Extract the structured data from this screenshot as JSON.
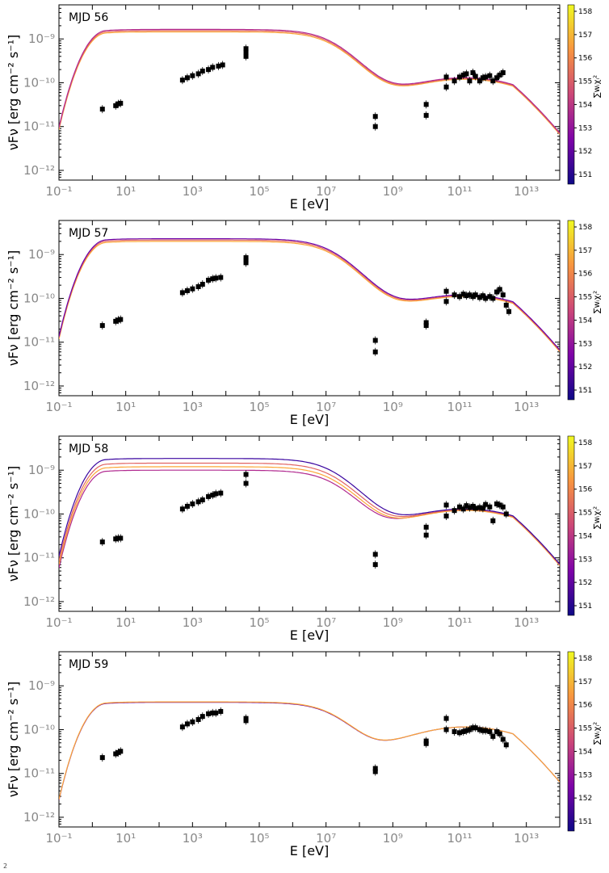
{
  "colorbar": {
    "label": "∑wᵢχᵢ²",
    "ticks": [
      "151",
      "152",
      "153",
      "154",
      "155",
      "156",
      "157",
      "158"
    ]
  },
  "footnote": "2",
  "chart_data": [
    {
      "type": "scatter",
      "title": "MJD 56",
      "xlabel": "E [eV]",
      "ylabel": "νFν [erg cm⁻² s⁻¹]",
      "x_scale": "log",
      "y_scale": "log",
      "xlim": [
        0.1,
        100000000000000.0
      ],
      "ylim": [
        6e-13,
        6e-09
      ],
      "xticks": [
        "10⁻¹",
        "10¹",
        "10³",
        "10⁵",
        "10⁷",
        "10⁹",
        "10¹¹",
        "10¹³"
      ],
      "yticks": [
        "10⁻¹²",
        "10⁻¹¹",
        "10⁻¹⁰",
        "10⁻⁹"
      ],
      "points": [
        [
          2.0,
          2.5e-11
        ],
        [
          5.0,
          3e-11
        ],
        [
          6.0,
          3.3e-11
        ],
        [
          7.0,
          3.4e-11
        ],
        [
          500,
          1.15e-10
        ],
        [
          700,
          1.3e-10
        ],
        [
          1000,
          1.45e-10
        ],
        [
          1500,
          1.6e-10
        ],
        [
          2000,
          1.85e-10
        ],
        [
          3000,
          2e-10
        ],
        [
          4000,
          2.25e-10
        ],
        [
          6000,
          2.4e-10
        ],
        [
          8000,
          2.55e-10
        ],
        [
          40000,
          5e-10
        ],
        [
          40000,
          4e-10
        ],
        [
          40000,
          6e-10
        ],
        [
          300000000.0,
          1.7e-11
        ],
        [
          300000000.0,
          1e-11
        ],
        [
          10000000000.0,
          3.2e-11
        ],
        [
          10000000000.0,
          1.8e-11
        ],
        [
          40000000000.0,
          1.35e-10
        ],
        [
          40000000000.0,
          8e-11
        ],
        [
          70000000000.0,
          1.1e-10
        ],
        [
          100000000000.0,
          1.35e-10
        ],
        [
          130000000000.0,
          1.5e-10
        ],
        [
          160000000000.0,
          1.6e-10
        ],
        [
          200000000000.0,
          1.1e-10
        ],
        [
          250000000000.0,
          1.7e-10
        ],
        [
          300000000000.0,
          1.4e-10
        ],
        [
          400000000000.0,
          1.1e-10
        ],
        [
          500000000000.0,
          1.3e-10
        ],
        [
          600000000000.0,
          1.35e-10
        ],
        [
          800000000000.0,
          1.45e-10
        ],
        [
          1000000000000.0,
          1.1e-10
        ],
        [
          1300000000000.0,
          1.3e-10
        ],
        [
          1600000000000.0,
          1.5e-10
        ],
        [
          2000000000000.0,
          1.7e-10
        ]
      ],
      "models": [
        {
          "color": "#fca636",
          "sync_peak": 1.45e-09,
          "dip": 6.5e-11,
          "ic_peak": 1.2e-10
        },
        {
          "color": "#e16462",
          "sync_peak": 1.55e-09,
          "dip": 6e-11,
          "ic_peak": 1.25e-10
        },
        {
          "color": "#b12a90",
          "sync_peak": 1.65e-09,
          "dip": 6.3e-11,
          "ic_peak": 1.3e-10
        }
      ]
    },
    {
      "type": "scatter",
      "title": "MJD 57",
      "xlabel": "E [eV]",
      "ylabel": "νFν [erg cm⁻² s⁻¹]",
      "x_scale": "log",
      "y_scale": "log",
      "xlim": [
        0.1,
        100000000000000.0
      ],
      "ylim": [
        6e-13,
        6e-09
      ],
      "xticks": [
        "10⁻¹",
        "10¹",
        "10³",
        "10⁵",
        "10⁷",
        "10⁹",
        "10¹¹",
        "10¹³"
      ],
      "yticks": [
        "10⁻¹²",
        "10⁻¹¹",
        "10⁻¹⁰",
        "10⁻⁹"
      ],
      "points": [
        [
          2.0,
          2.4e-11
        ],
        [
          5.0,
          3e-11
        ],
        [
          6.0,
          3.2e-11
        ],
        [
          7.0,
          3.3e-11
        ],
        [
          500,
          1.35e-10
        ],
        [
          700,
          1.5e-10
        ],
        [
          1000,
          1.65e-10
        ],
        [
          1500,
          1.85e-10
        ],
        [
          2000,
          2.1e-10
        ],
        [
          3000,
          2.6e-10
        ],
        [
          4000,
          2.8e-10
        ],
        [
          5000,
          2.9e-10
        ],
        [
          7000,
          3e-10
        ],
        [
          40000,
          7.5e-10
        ],
        [
          40000,
          6.5e-10
        ],
        [
          40000,
          8.5e-10
        ],
        [
          300000000.0,
          1.1e-11
        ],
        [
          300000000.0,
          6e-12
        ],
        [
          10000000000.0,
          2.8e-11
        ],
        [
          10000000000.0,
          2.4e-11
        ],
        [
          40000000000.0,
          1.45e-10
        ],
        [
          40000000000.0,
          8.5e-11
        ],
        [
          70000000000.0,
          1.2e-10
        ],
        [
          100000000000.0,
          1.1e-10
        ],
        [
          130000000000.0,
          1.25e-10
        ],
        [
          160000000000.0,
          1.15e-10
        ],
        [
          200000000000.0,
          1.2e-10
        ],
        [
          250000000000.0,
          1.1e-10
        ],
        [
          300000000000.0,
          1.2e-10
        ],
        [
          400000000000.0,
          1.05e-10
        ],
        [
          500000000000.0,
          1.15e-10
        ],
        [
          600000000000.0,
          1e-10
        ],
        [
          800000000000.0,
          1.1e-10
        ],
        [
          1000000000000.0,
          1e-10
        ],
        [
          1300000000000.0,
          1.4e-10
        ],
        [
          1600000000000.0,
          1.6e-10
        ],
        [
          2000000000000.0,
          1.2e-10
        ],
        [
          2500000000000.0,
          7e-11
        ],
        [
          3000000000000.0,
          5e-11
        ]
      ],
      "models": [
        {
          "color": "#fca636",
          "sync_peak": 2e-09,
          "dip": 5.5e-11,
          "ic_peak": 1.1e-10
        },
        {
          "color": "#e16462",
          "sync_peak": 2.15e-09,
          "dip": 5e-11,
          "ic_peak": 1.15e-10
        },
        {
          "color": "#6a00a8",
          "sync_peak": 2.3e-09,
          "dip": 5.2e-11,
          "ic_peak": 1.2e-10
        }
      ]
    },
    {
      "type": "scatter",
      "title": "MJD 58",
      "xlabel": "E [eV]",
      "ylabel": "νFν [erg cm⁻² s⁻¹]",
      "x_scale": "log",
      "y_scale": "log",
      "xlim": [
        0.1,
        100000000000000.0
      ],
      "ylim": [
        6e-13,
        6e-09
      ],
      "xticks": [
        "10⁻¹",
        "10¹",
        "10³",
        "10⁵",
        "10⁷",
        "10⁹",
        "10¹¹",
        "10¹³"
      ],
      "yticks": [
        "10⁻¹²",
        "10⁻¹¹",
        "10⁻¹⁰",
        "10⁻⁹"
      ],
      "points": [
        [
          2.0,
          2.3e-11
        ],
        [
          5.0,
          2.7e-11
        ],
        [
          6.0,
          2.8e-11
        ],
        [
          7.0,
          2.8e-11
        ],
        [
          500,
          1.3e-10
        ],
        [
          700,
          1.5e-10
        ],
        [
          1000,
          1.7e-10
        ],
        [
          1500,
          1.9e-10
        ],
        [
          2000,
          2.1e-10
        ],
        [
          3000,
          2.5e-10
        ],
        [
          4000,
          2.7e-10
        ],
        [
          5000,
          2.9e-10
        ],
        [
          7000,
          3e-10
        ],
        [
          40000,
          8e-10
        ],
        [
          40000,
          5e-10
        ],
        [
          300000000.0,
          1.2e-11
        ],
        [
          300000000.0,
          7e-12
        ],
        [
          10000000000.0,
          5e-11
        ],
        [
          10000000000.0,
          3.3e-11
        ],
        [
          40000000000.0,
          1.6e-10
        ],
        [
          40000000000.0,
          9e-11
        ],
        [
          70000000000.0,
          1.2e-10
        ],
        [
          100000000000.0,
          1.45e-10
        ],
        [
          130000000000.0,
          1.3e-10
        ],
        [
          160000000000.0,
          1.55e-10
        ],
        [
          200000000000.0,
          1.4e-10
        ],
        [
          250000000000.0,
          1.5e-10
        ],
        [
          300000000000.0,
          1.35e-10
        ],
        [
          400000000000.0,
          1.4e-10
        ],
        [
          500000000000.0,
          1.35e-10
        ],
        [
          600000000000.0,
          1.65e-10
        ],
        [
          800000000000.0,
          1.45e-10
        ],
        [
          1000000000000.0,
          7e-11
        ],
        [
          1300000000000.0,
          1.7e-10
        ],
        [
          1600000000000.0,
          1.6e-10
        ],
        [
          2000000000000.0,
          1.45e-10
        ],
        [
          2500000000000.0,
          1e-10
        ]
      ],
      "models": [
        {
          "color": "#b12a90",
          "sync_peak": 1e-09,
          "dip": 5.2e-11,
          "ic_peak": 1.25e-10
        },
        {
          "color": "#fca636",
          "sync_peak": 1.2e-09,
          "dip": 5.5e-11,
          "ic_peak": 1.2e-10
        },
        {
          "color": "#e16462",
          "sync_peak": 1.45e-09,
          "dip": 5e-11,
          "ic_peak": 1.25e-10
        },
        {
          "color": "#3a05a0",
          "sync_peak": 1.85e-09,
          "dip": 5.3e-11,
          "ic_peak": 1.3e-10
        }
      ]
    },
    {
      "type": "scatter",
      "title": "MJD 59",
      "xlabel": "E [eV]",
      "ylabel": "νFν [erg cm⁻² s⁻¹]",
      "x_scale": "log",
      "y_scale": "log",
      "xlim": [
        0.1,
        100000000000000.0
      ],
      "ylim": [
        6e-13,
        6e-09
      ],
      "xticks": [
        "10⁻¹",
        "10¹",
        "10³",
        "10⁵",
        "10⁷",
        "10⁹",
        "10¹¹",
        "10¹³"
      ],
      "yticks": [
        "10⁻¹²",
        "10⁻¹¹",
        "10⁻¹⁰",
        "10⁻⁹"
      ],
      "points": [
        [
          2.0,
          2.3e-11
        ],
        [
          5.0,
          2.8e-11
        ],
        [
          6.0,
          3e-11
        ],
        [
          7.0,
          3.2e-11
        ],
        [
          500,
          1.15e-10
        ],
        [
          700,
          1.35e-10
        ],
        [
          1000,
          1.5e-10
        ],
        [
          1500,
          1.7e-10
        ],
        [
          2000,
          2e-10
        ],
        [
          3000,
          2.3e-10
        ],
        [
          4000,
          2.4e-10
        ],
        [
          5000,
          2.4e-10
        ],
        [
          7000,
          2.6e-10
        ],
        [
          40000,
          1.8e-10
        ],
        [
          40000,
          1.6e-10
        ],
        [
          300000000.0,
          1.3e-11
        ],
        [
          300000000.0,
          1.1e-11
        ],
        [
          10000000000.0,
          5.5e-11
        ],
        [
          10000000000.0,
          4.8e-11
        ],
        [
          40000000000.0,
          1.8e-10
        ],
        [
          40000000000.0,
          1e-10
        ],
        [
          70000000000.0,
          9e-11
        ],
        [
          100000000000.0,
          8.5e-11
        ],
        [
          130000000000.0,
          9e-11
        ],
        [
          160000000000.0,
          9.5e-11
        ],
        [
          200000000000.0,
          1e-10
        ],
        [
          250000000000.0,
          1.1e-10
        ],
        [
          300000000000.0,
          1.1e-10
        ],
        [
          400000000000.0,
          1e-10
        ],
        [
          500000000000.0,
          9.5e-11
        ],
        [
          600000000000.0,
          9.5e-11
        ],
        [
          800000000000.0,
          9e-11
        ],
        [
          1000000000000.0,
          7e-11
        ],
        [
          1300000000000.0,
          9e-11
        ],
        [
          1600000000000.0,
          8e-11
        ],
        [
          2000000000000.0,
          6e-11
        ],
        [
          2500000000000.0,
          4.5e-11
        ]
      ],
      "models": [
        {
          "color": "#6a00a8",
          "sync_peak": 4.2e-10,
          "dip": 7e-11,
          "ic_peak": 1.15e-10
        },
        {
          "color": "#fca636",
          "sync_peak": 4.3e-10,
          "dip": 7e-11,
          "ic_peak": 1.15e-10
        }
      ]
    }
  ]
}
